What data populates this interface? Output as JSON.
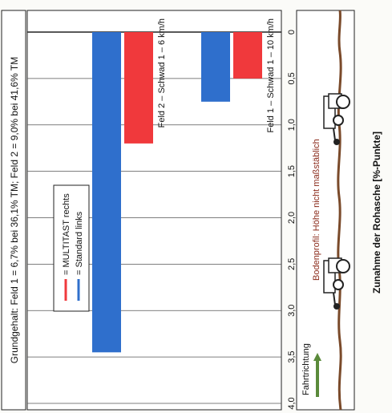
{
  "chart_data": {
    "type": "bar",
    "title": "Grundgehalt: Feld 1 = 6,7% bei 36,1% TM; Feld 2 = 9,0% bei 41,6% TM",
    "ylabel": "Zunahme der Rohasche [%-Punkte]",
    "xlabel": "",
    "ylim": [
      0,
      4
    ],
    "yticks": [
      "0",
      "0,5",
      "1,0",
      "1,5",
      "2,0",
      "2,5",
      "3,0",
      "3,5",
      "4,0"
    ],
    "grid": true,
    "legend_placement": "upper-left",
    "categories": [
      "Feld 1 – Schwad 1 – 10 km/h",
      "Feld 2 – Schwad 1 – 6 km/h"
    ],
    "series": [
      {
        "name": "= MULTITAST rechts",
        "color": "#f0393c",
        "values": [
          0.5,
          1.2
        ]
      },
      {
        "name": "= Standard links",
        "color": "#2f6fcc",
        "values": [
          0.75,
          3.45
        ]
      }
    ]
  },
  "profile_panel": {
    "direction_label": "Fahrtrichtung",
    "profile_label": "Bodenprofil: Höhe nicht maßstäblich",
    "colors": {
      "ground": "#7a4a2a",
      "arrow": "#5a8a3a",
      "text": "#8a2a1a"
    }
  }
}
